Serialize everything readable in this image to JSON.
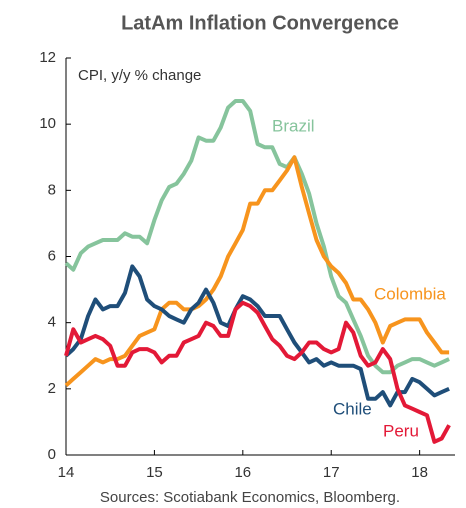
{
  "chart_data": {
    "type": "line",
    "title": "LatAm Inflation Convergence",
    "annotation": "CPI, y/y % change",
    "source": "Sources: Scotiabank Economics, Bloomberg.",
    "x": [
      14,
      14.083,
      14.167,
      14.25,
      14.333,
      14.417,
      14.5,
      14.583,
      14.667,
      14.75,
      14.833,
      14.917,
      15,
      15.083,
      15.167,
      15.25,
      15.333,
      15.417,
      15.5,
      15.583,
      15.667,
      15.75,
      15.833,
      15.917,
      16,
      16.083,
      16.167,
      16.25,
      16.333,
      16.417,
      16.5,
      16.583,
      16.667,
      16.75,
      16.833,
      16.917,
      17,
      17.083,
      17.167,
      17.25,
      17.333,
      17.417,
      17.5,
      17.583,
      17.667,
      17.75,
      17.833,
      17.917,
      18,
      18.083,
      18.167,
      18.25,
      18.333
    ],
    "series": [
      {
        "name": "Brazil",
        "color": "#86c49c",
        "values": [
          5.8,
          5.6,
          6.1,
          6.3,
          6.4,
          6.5,
          6.5,
          6.5,
          6.7,
          6.6,
          6.6,
          6.4,
          7.1,
          7.7,
          8.1,
          8.2,
          8.5,
          8.9,
          9.6,
          9.5,
          9.5,
          9.9,
          10.5,
          10.7,
          10.7,
          10.4,
          9.4,
          9.3,
          9.3,
          8.8,
          8.7,
          9.0,
          8.5,
          7.9,
          7.0,
          6.3,
          5.4,
          4.8,
          4.6,
          4.1,
          3.6,
          3.0,
          2.7,
          2.5,
          2.5,
          2.7,
          2.8,
          2.9,
          2.9,
          2.8,
          2.7,
          2.8,
          2.9
        ]
      },
      {
        "name": "Colombia",
        "color": "#f7941d",
        "values": [
          2.1,
          2.3,
          2.5,
          2.7,
          2.9,
          2.8,
          2.9,
          2.9,
          3.0,
          3.3,
          3.6,
          3.7,
          3.8,
          4.4,
          4.6,
          4.6,
          4.4,
          4.4,
          4.5,
          4.7,
          5.0,
          5.4,
          6.0,
          6.4,
          6.8,
          7.6,
          7.6,
          8.0,
          8.0,
          8.3,
          8.6,
          9.0,
          8.1,
          7.3,
          6.5,
          6.0,
          5.7,
          5.5,
          5.2,
          4.7,
          4.7,
          4.4,
          4.0,
          3.4,
          3.9,
          4.0,
          4.1,
          4.1,
          4.1,
          3.7,
          3.4,
          3.1,
          3.1
        ]
      },
      {
        "name": "Chile",
        "color": "#1f4e79",
        "values": [
          3.0,
          3.2,
          3.5,
          4.2,
          4.7,
          4.4,
          4.5,
          4.5,
          4.9,
          5.7,
          5.4,
          4.7,
          4.5,
          4.4,
          4.2,
          4.1,
          4.0,
          4.4,
          4.6,
          5.0,
          4.6,
          4.0,
          3.9,
          4.4,
          4.8,
          4.7,
          4.5,
          4.2,
          4.2,
          4.2,
          3.8,
          3.4,
          3.1,
          2.8,
          2.9,
          2.7,
          2.8,
          2.7,
          2.7,
          2.7,
          2.6,
          1.7,
          1.7,
          1.9,
          1.5,
          1.9,
          1.9,
          2.3,
          2.2,
          2.0,
          1.8,
          1.9,
          2.0
        ]
      },
      {
        "name": "Peru",
        "color": "#e31937",
        "values": [
          3.0,
          3.8,
          3.4,
          3.5,
          3.6,
          3.5,
          3.3,
          2.7,
          2.7,
          3.1,
          3.2,
          3.2,
          3.1,
          2.8,
          3.0,
          3.0,
          3.4,
          3.5,
          3.6,
          4.0,
          3.9,
          3.6,
          3.6,
          4.4,
          4.6,
          4.5,
          4.3,
          3.9,
          3.5,
          3.3,
          3.0,
          2.9,
          3.1,
          3.4,
          3.4,
          3.2,
          3.1,
          3.2,
          4.0,
          3.7,
          3.0,
          2.7,
          2.8,
          3.2,
          2.9,
          2.0,
          1.5,
          1.4,
          1.3,
          1.2,
          0.4,
          0.5,
          0.9
        ]
      }
    ],
    "xlim": [
      14,
      18.4
    ],
    "xticks": [
      14,
      15,
      16,
      17,
      18
    ],
    "ylim": [
      0,
      12
    ],
    "yticks": [
      0,
      2,
      4,
      6,
      8,
      10,
      12
    ],
    "grid": false
  }
}
